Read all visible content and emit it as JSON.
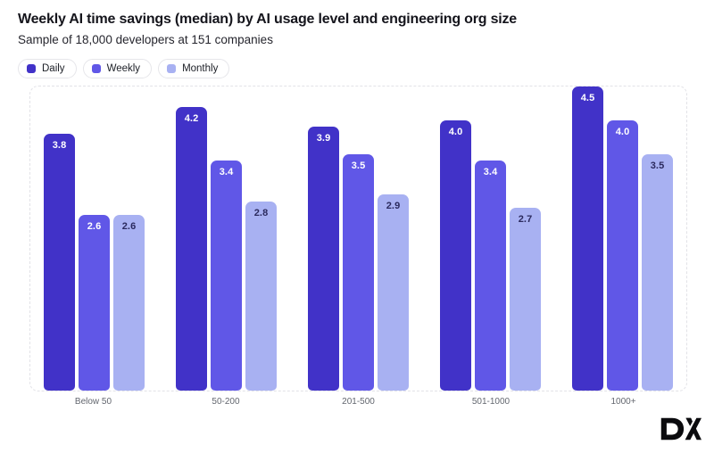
{
  "header": {
    "title": "Weekly AI time savings (median) by AI usage level and engineering org size",
    "subtitle": "Sample of 18,000 developers at 151 companies"
  },
  "legend": [
    {
      "label": "Daily",
      "color": "#4132c8"
    },
    {
      "label": "Weekly",
      "color": "#6057e7"
    },
    {
      "label": "Monthly",
      "color": "#a8b1f2"
    }
  ],
  "chart_data": {
    "type": "bar",
    "title": "Weekly AI time savings (median) by AI usage level and engineering org size",
    "subtitle": "Sample of 18,000 developers at 151 companies",
    "categories": [
      "Below 50",
      "50-200",
      "201-500",
      "501-1000",
      "1000+"
    ],
    "series": [
      {
        "name": "Daily",
        "color": "#4132c8",
        "label_color": "#ffffff",
        "values": [
          3.8,
          4.2,
          3.9,
          4.0,
          4.5
        ]
      },
      {
        "name": "Weekly",
        "color": "#6057e7",
        "label_color": "#ffffff",
        "values": [
          2.6,
          3.4,
          3.5,
          3.4,
          4.0
        ]
      },
      {
        "name": "Monthly",
        "color": "#a8b1f2",
        "label_color": "#2b2a5e",
        "values": [
          2.6,
          2.8,
          2.9,
          2.7,
          3.5
        ]
      }
    ],
    "xlabel": "",
    "ylabel": "",
    "ylim": [
      0,
      4.5
    ],
    "grid": false,
    "legend_position": "top-left",
    "value_labels": "inside-top, one decimal"
  },
  "branding": {
    "logo_text": "DX"
  }
}
